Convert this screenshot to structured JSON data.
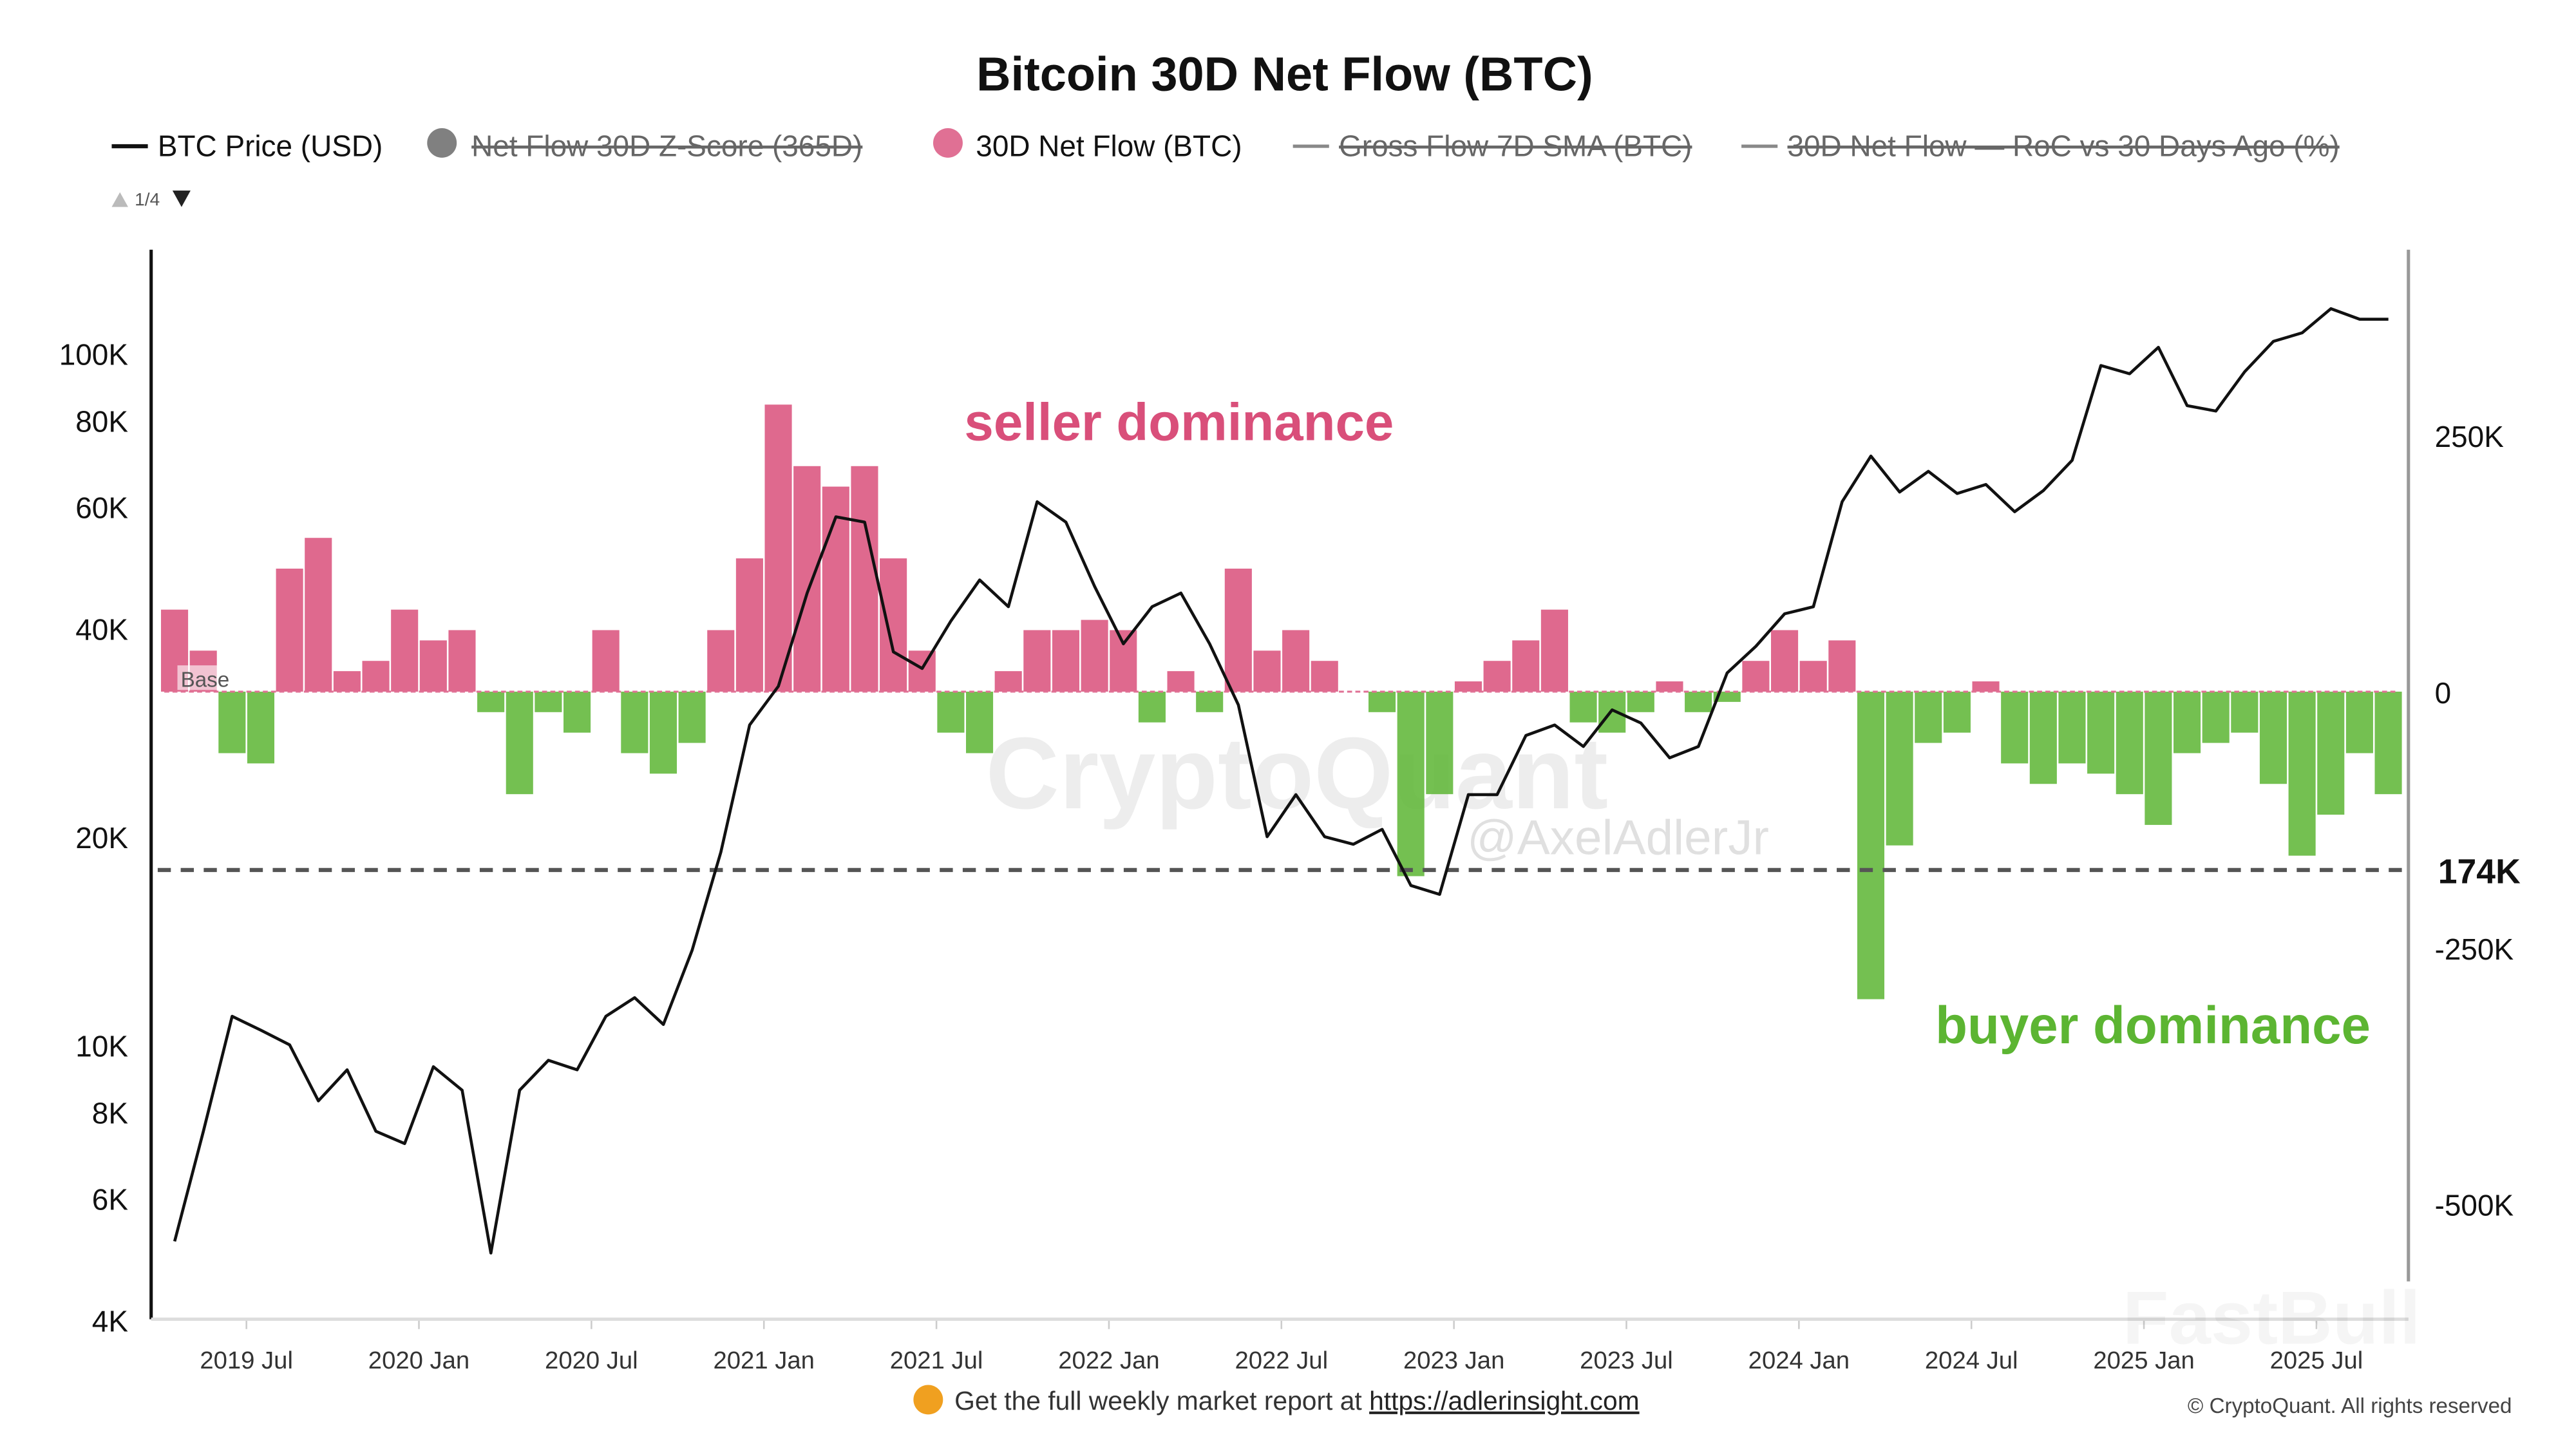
{
  "chart_data": {
    "type": "bar+line",
    "title": "Bitcoin 30D Net Flow (BTC)",
    "legend": [
      {
        "label": "BTC Price (USD)",
        "marker": "line",
        "color": "#111111",
        "enabled": true
      },
      {
        "label": "Net Flow 30D Z-Score (365D)",
        "marker": "circle",
        "color": "#808080",
        "enabled": false
      },
      {
        "label": "30D Net Flow (BTC)",
        "marker": "circle",
        "color": "#e07094",
        "enabled": true
      },
      {
        "label": "Gross Flow 7D SMA (BTC)",
        "marker": "line",
        "color": "#888888",
        "enabled": false
      },
      {
        "label": "30D Net Flow — RoC vs 30 Days Ago (%)",
        "marker": "line",
        "color": "#888888",
        "enabled": false
      }
    ],
    "legend_position": "top",
    "legend_pager": "1/4",
    "x_ticks": [
      "2019 Jul",
      "2020 Jan",
      "2020 Jul",
      "2021 Jan",
      "2021 Jul",
      "2022 Jan",
      "2022 Jul",
      "2023 Jan",
      "2023 Jul",
      "2024 Jan",
      "2024 Jul",
      "2025 Jan",
      "2025 Jul"
    ],
    "left_axis": {
      "scale": "log",
      "range": [
        4000,
        130000
      ],
      "ticks": [
        "4K",
        "6K",
        "8K",
        "10K",
        "20K",
        "40K",
        "60K",
        "80K",
        "100K"
      ]
    },
    "right_axis": {
      "scale": "linear",
      "range": [
        -600000,
        400000
      ],
      "ticks": [
        "250K",
        "0",
        "-250K",
        "-500K"
      ]
    },
    "reference_line": {
      "value": -174000,
      "label": "174K",
      "style": "dashed"
    },
    "base_label": "Base",
    "annotations": {
      "seller": "seller dominance",
      "buyer": "buyer dominance"
    },
    "colors": {
      "positive": "#d94f7a",
      "negative": "#5cb532",
      "price": "#111111"
    },
    "months": [
      "2019-04",
      "2019-05",
      "2019-06",
      "2019-07",
      "2019-08",
      "2019-09",
      "2019-10",
      "2019-11",
      "2019-12",
      "2020-01",
      "2020-02",
      "2020-03",
      "2020-04",
      "2020-05",
      "2020-06",
      "2020-07",
      "2020-08",
      "2020-09",
      "2020-10",
      "2020-11",
      "2020-12",
      "2021-01",
      "2021-02",
      "2021-03",
      "2021-04",
      "2021-05",
      "2021-06",
      "2021-07",
      "2021-08",
      "2021-09",
      "2021-10",
      "2021-11",
      "2021-12",
      "2022-01",
      "2022-02",
      "2022-03",
      "2022-04",
      "2022-05",
      "2022-06",
      "2022-07",
      "2022-08",
      "2022-09",
      "2022-10",
      "2022-11",
      "2022-12",
      "2023-01",
      "2023-02",
      "2023-03",
      "2023-04",
      "2023-05",
      "2023-06",
      "2023-07",
      "2023-08",
      "2023-09",
      "2023-10",
      "2023-11",
      "2023-12",
      "2024-01",
      "2024-02",
      "2024-03",
      "2024-04",
      "2024-05",
      "2024-06",
      "2024-07",
      "2024-08",
      "2024-09",
      "2024-10",
      "2024-11",
      "2024-12",
      "2025-01",
      "2025-02",
      "2025-03",
      "2025-04",
      "2025-05",
      "2025-06",
      "2025-07",
      "2025-08",
      "2025-09"
    ],
    "series": [
      {
        "name": "BTC Price (USD)",
        "type": "line",
        "axis": "left",
        "values": [
          5200,
          7500,
          11000,
          10500,
          10000,
          8300,
          9200,
          7500,
          7200,
          9300,
          8600,
          5000,
          8600,
          9500,
          9200,
          11000,
          11700,
          10700,
          13700,
          19000,
          29000,
          33000,
          45000,
          58000,
          57000,
          37000,
          35000,
          41000,
          47000,
          43000,
          61000,
          57000,
          46000,
          38000,
          43000,
          45000,
          38000,
          31000,
          20000,
          23000,
          20000,
          19500,
          20500,
          17000,
          16500,
          23000,
          23000,
          28000,
          29000,
          27000,
          30500,
          29200,
          26000,
          27000,
          34500,
          37700,
          42000,
          43000,
          61000,
          71000,
          63000,
          67500,
          62700,
          64600,
          59000,
          63300,
          70000,
          96000,
          93400,
          102000,
          84000,
          82500,
          94000,
          104000,
          107000,
          116000,
          112000,
          112000
        ]
      },
      {
        "name": "30D Net Flow (BTC)",
        "type": "bar",
        "axis": "right",
        "values": [
          80000,
          40000,
          -60000,
          -70000,
          120000,
          150000,
          20000,
          30000,
          80000,
          50000,
          60000,
          -20000,
          -100000,
          -20000,
          -40000,
          60000,
          -60000,
          -80000,
          -50000,
          60000,
          130000,
          280000,
          220000,
          200000,
          220000,
          130000,
          40000,
          -40000,
          -60000,
          20000,
          60000,
          60000,
          70000,
          60000,
          -30000,
          20000,
          -20000,
          120000,
          40000,
          60000,
          30000,
          0,
          -20000,
          -180000,
          -100000,
          10000,
          30000,
          50000,
          80000,
          -30000,
          -40000,
          -20000,
          10000,
          -20000,
          -10000,
          30000,
          60000,
          30000,
          50000,
          -300000,
          -150000,
          -50000,
          -40000,
          10000,
          -70000,
          -90000,
          -70000,
          -80000,
          -100000,
          -130000,
          -60000,
          -50000,
          -40000,
          -90000,
          -160000,
          -120000,
          -60000,
          -100000
        ]
      }
    ]
  },
  "watermarks": {
    "main": "CryptoQuant",
    "author": "@AxelAdlerJr",
    "corner": "FastBull"
  },
  "footer": {
    "text": "Get the full weekly market report at",
    "link": "https://adlerinsight.com",
    "copyright": "© CryptoQuant. All rights reserved"
  }
}
